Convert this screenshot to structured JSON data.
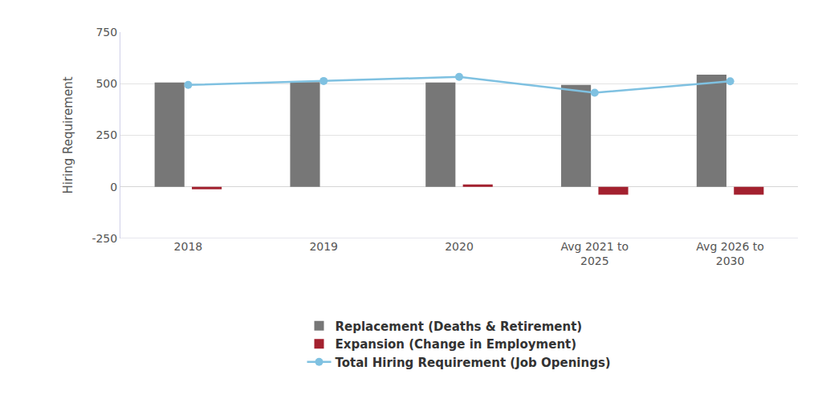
{
  "chart_data": {
    "type": "bar",
    "y_label": "Hiring Requirement",
    "categories": [
      "2018",
      "2019",
      "2020",
      "Avg 2021 to 2025",
      "Avg 2026 to 2030"
    ],
    "series": [
      {
        "name": "Replacement (Deaths & Retirement)",
        "type": "bar",
        "color": "#777777",
        "values": [
          506,
          508,
          506,
          494,
          544
        ]
      },
      {
        "name": "Expansion (Change in Employment)",
        "type": "bar",
        "color": "#a3212f",
        "values": [
          -12,
          0,
          12,
          -38,
          -38
        ]
      },
      {
        "name": "Total Hiring Requirement (Job Openings)",
        "type": "line",
        "color": "#7fc1e1",
        "marker": "circle",
        "values": [
          494,
          513,
          533,
          456,
          512
        ]
      }
    ],
    "ylim": [
      -250,
      750
    ],
    "yticks": [
      -250,
      0,
      250,
      500,
      750
    ],
    "grid": true,
    "legend": "bottom"
  }
}
